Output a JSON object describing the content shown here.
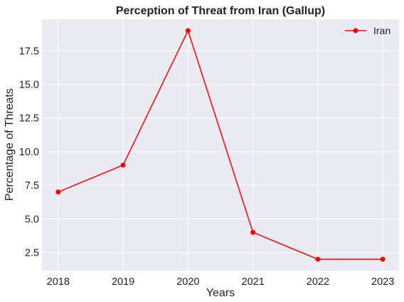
{
  "chart_data": {
    "type": "line",
    "title": "Perception of Threat from Iran (Gallup)",
    "xlabel": "Years",
    "ylabel": "Percentage of Threats",
    "x": [
      "2018",
      "2019",
      "2020",
      "2021",
      "2022",
      "2023"
    ],
    "series": [
      {
        "name": "Iran",
        "values": [
          7,
          9,
          19,
          4,
          2,
          2
        ],
        "color": "#ff0000",
        "marker": "circle"
      }
    ],
    "xlim": [
      2017.75,
      2023.25
    ],
    "ylim": [
      1.15,
      19.85
    ],
    "yticks": [
      "2.5",
      "5.0",
      "7.5",
      "10.0",
      "12.5",
      "15.0",
      "17.5"
    ],
    "grid": true,
    "legend_position": "top-right",
    "background": "#eaeaf2"
  }
}
